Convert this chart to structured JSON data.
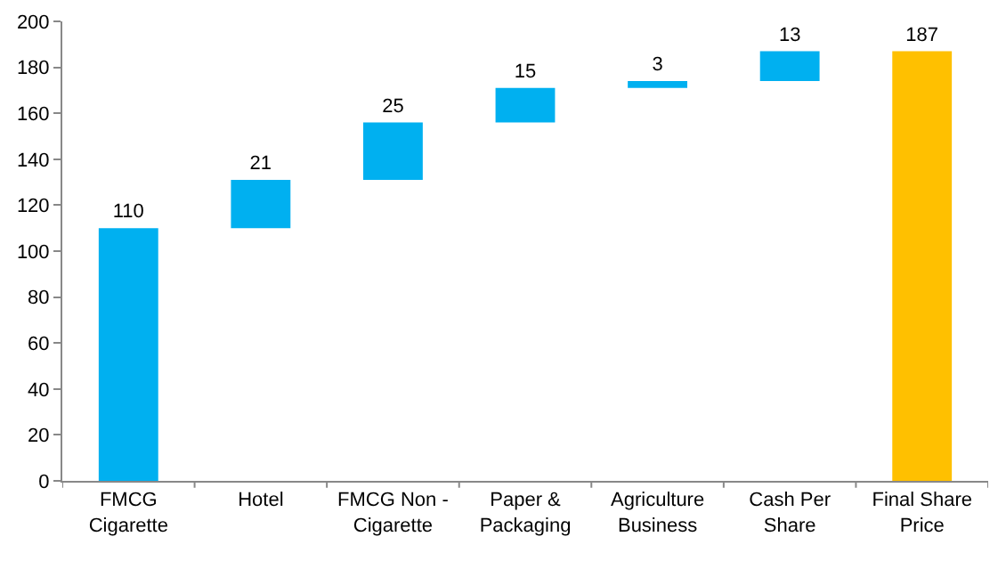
{
  "chart_data": {
    "type": "bar",
    "categories": [
      "FMCG Cigarette",
      "Hotel",
      "FMCG Non - Cigarette",
      "Paper & Packaging",
      "Agriculture Business",
      "Cash Per Share",
      "Final Share Price"
    ],
    "values": [
      110,
      21,
      25,
      15,
      3,
      13,
      187
    ],
    "base": [
      0,
      110,
      131,
      156,
      171,
      174,
      0
    ],
    "colors": [
      "#00b0f0",
      "#00b0f0",
      "#00b0f0",
      "#00b0f0",
      "#00b0f0",
      "#00b0f0",
      "#ffc000"
    ],
    "data_labels": true,
    "ylim": [
      0,
      200
    ],
    "yticks": [
      0,
      20,
      40,
      60,
      80,
      100,
      120,
      140,
      160,
      180,
      200
    ]
  }
}
